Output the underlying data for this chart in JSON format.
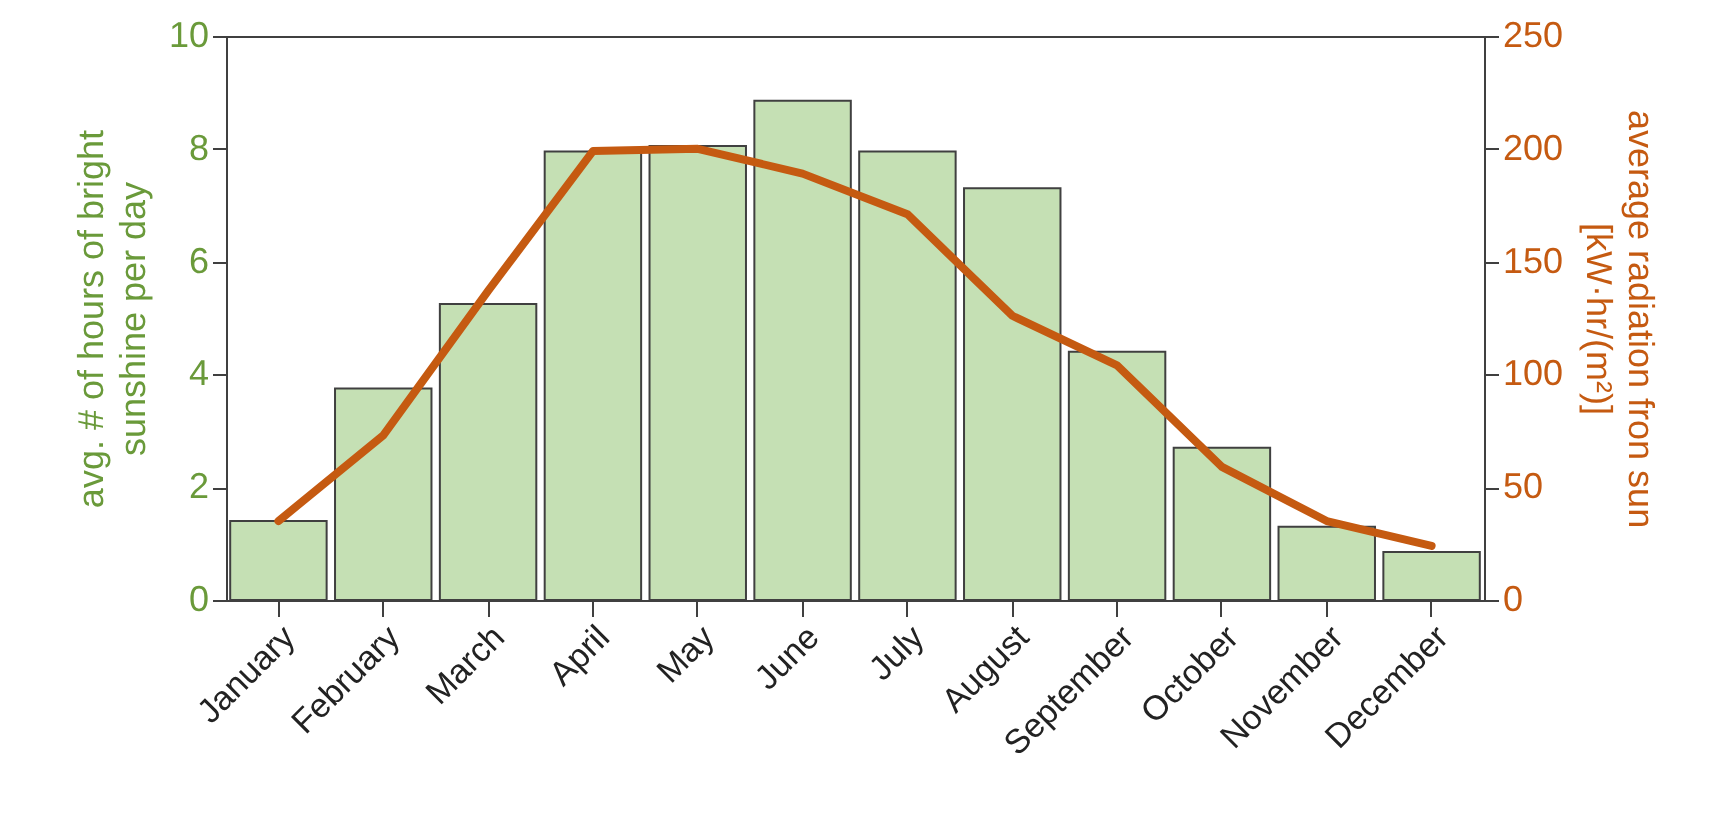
{
  "chart_data": {
    "type": "bar",
    "categories": [
      "January",
      "February",
      "March",
      "April",
      "May",
      "June",
      "July",
      "August",
      "September",
      "October",
      "November",
      "December"
    ],
    "ylabel": "avg. # of hours of bright\nsunshine per day",
    "y2label": "average radiation fron sun\n[kW·hr/(m²)]",
    "ylim": [
      0,
      10
    ],
    "yticks": [
      0,
      2,
      4,
      6,
      8,
      10
    ],
    "y2lim": [
      0,
      250
    ],
    "y2ticks": [
      0,
      50,
      100,
      150,
      200,
      250
    ],
    "grid": false,
    "series": [
      {
        "color": "#c5e0b4",
        "values": [
          1.4,
          3.75,
          5.25,
          7.95,
          8.05,
          8.85,
          7.95,
          7.3,
          4.4,
          2.7,
          1.3,
          0.85
        ]
      },
      {
        "type": "line",
        "axis": "y2",
        "color": "#c55a11",
        "values": [
          35,
          73,
          137,
          199,
          200,
          189,
          171,
          126,
          104,
          59,
          35,
          24
        ]
      }
    ]
  }
}
